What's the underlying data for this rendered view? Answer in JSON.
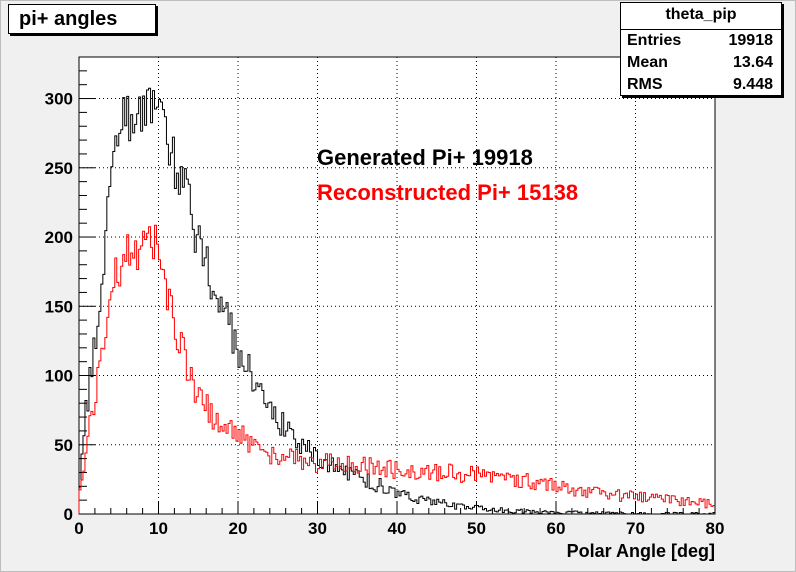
{
  "chart_data": {
    "type": "histogram",
    "title": "pi+ angles",
    "xlabel": "Polar Angle [deg]",
    "ylabel": "",
    "xlim": [
      0,
      80
    ],
    "ylim": [
      0,
      330
    ],
    "x_ticks": [
      "0",
      "10",
      "20",
      "30",
      "40",
      "50",
      "60",
      "70",
      "80"
    ],
    "y_ticks": [
      "0",
      "50",
      "100",
      "150",
      "200",
      "250",
      "300"
    ],
    "grid": true,
    "stats_box": {
      "name": "theta_pip",
      "rows": [
        {
          "label": "Entries",
          "value": "19918"
        },
        {
          "label": "Mean",
          "value": "13.64"
        },
        {
          "label": "RMS",
          "value": "9.448"
        }
      ]
    },
    "annotations": [
      {
        "text": "Generated Pi+ 19918",
        "color": "#000000"
      },
      {
        "text": "Reconstructed Pi+ 15138",
        "color": "#ff0000"
      }
    ],
    "x": [
      0,
      1,
      2,
      3,
      4,
      5,
      6,
      7,
      8,
      9,
      10,
      11,
      12,
      13,
      14,
      15,
      16,
      17,
      18,
      19,
      20,
      21,
      22,
      23,
      24,
      25,
      26,
      27,
      28,
      29,
      30,
      32,
      34,
      36,
      38,
      40,
      42,
      44,
      46,
      48,
      50,
      55,
      60,
      65,
      70,
      75,
      80
    ],
    "series": [
      {
        "color": "#000000",
        "values": [
          15,
          80,
          120,
          175,
          240,
          275,
          285,
          285,
          285,
          300,
          295,
          270,
          255,
          245,
          220,
          195,
          180,
          165,
          150,
          135,
          120,
          110,
          95,
          85,
          75,
          68,
          62,
          55,
          50,
          46,
          40,
          35,
          30,
          25,
          20,
          15,
          12,
          9,
          7,
          5,
          4,
          2,
          1,
          1,
          0,
          0,
          0
        ]
      },
      {
        "color": "#ff0000",
        "values": [
          10,
          55,
          85,
          125,
          160,
          180,
          185,
          190,
          195,
          205,
          190,
          160,
          140,
          120,
          100,
          85,
          78,
          70,
          62,
          58,
          62,
          55,
          48,
          45,
          42,
          42,
          40,
          40,
          38,
          38,
          37,
          36,
          35,
          34,
          33,
          32,
          31,
          31,
          30,
          29,
          28,
          25,
          20,
          16,
          12,
          10,
          7
        ]
      }
    ]
  }
}
